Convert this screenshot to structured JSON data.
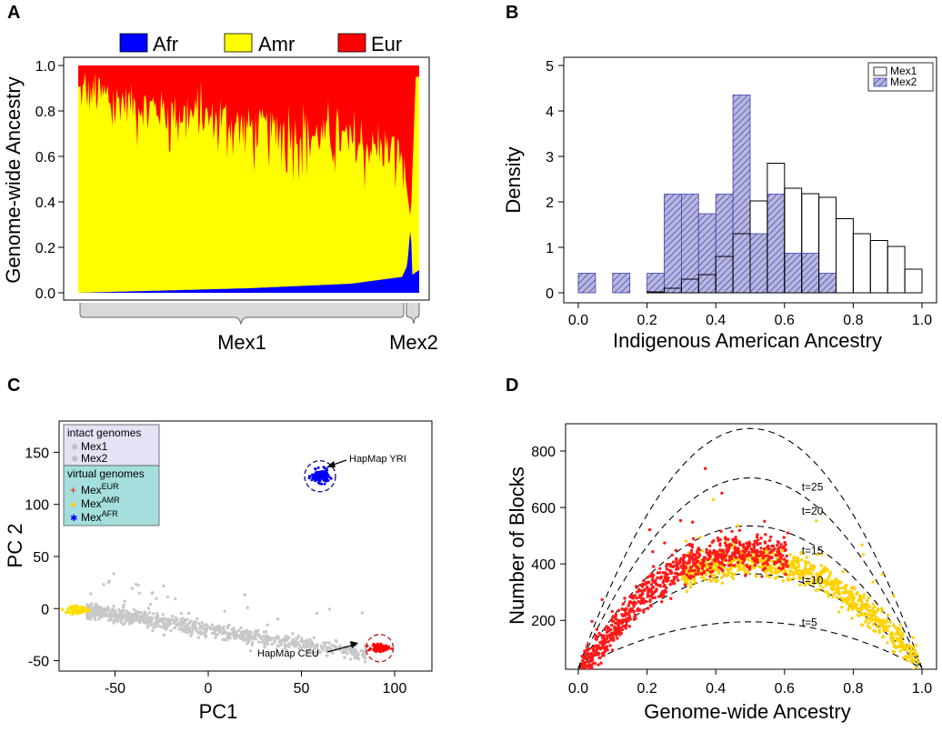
{
  "chart_data": [
    {
      "panel": "A",
      "type": "area",
      "legend": [
        {
          "name": "Afr",
          "color": "#0000ff"
        },
        {
          "name": "Amr",
          "color": "#ffff00"
        },
        {
          "name": "Eur",
          "color": "#ff0000"
        }
      ],
      "ylabel": "Genome-wide Ancestry",
      "ylim": [
        0,
        1
      ],
      "yticks": [
        "0.0",
        "0.2",
        "0.4",
        "0.6",
        "0.8",
        "1.0"
      ],
      "groups": [
        "Mex1",
        "Mex2"
      ],
      "afr_trend": [
        [
          0,
          0.0
        ],
        [
          0.5,
          0.02
        ],
        [
          0.8,
          0.04
        ],
        [
          0.95,
          0.07
        ],
        [
          0.965,
          0.12
        ],
        [
          0.975,
          0.3
        ],
        [
          0.98,
          0.08
        ],
        [
          1,
          0.1
        ]
      ],
      "amr_trend": [
        [
          0,
          0.9
        ],
        [
          0.25,
          0.82
        ],
        [
          0.5,
          0.75
        ],
        [
          0.75,
          0.7
        ],
        [
          0.95,
          0.62
        ],
        [
          0.975,
          0.32
        ],
        [
          0.99,
          0.95
        ],
        [
          1,
          0.95
        ]
      ]
    },
    {
      "panel": "B",
      "type": "bar",
      "xlabel": "Indigenous American Ancestry",
      "ylabel": "Density",
      "xlim": [
        0,
        1
      ],
      "ylim": [
        0,
        5
      ],
      "xticks": [
        "0.0",
        "0.2",
        "0.4",
        "0.6",
        "0.8",
        "1.0"
      ],
      "yticks": [
        "0",
        "1",
        "2",
        "3",
        "4",
        "5"
      ],
      "bin_width": 0.05,
      "series": [
        {
          "name": "Mex1",
          "bins": [
            0.0,
            0.05,
            0.1,
            0.15,
            0.2,
            0.25,
            0.3,
            0.35,
            0.4,
            0.45,
            0.5,
            0.55,
            0.6,
            0.65,
            0.7,
            0.75,
            0.8,
            0.85,
            0.9,
            0.95
          ],
          "values": [
            0,
            0,
            0,
            0,
            0.02,
            0.1,
            0.3,
            0.4,
            0.8,
            1.3,
            2.02,
            2.85,
            2.3,
            2.18,
            2.1,
            1.63,
            1.3,
            1.15,
            1.02,
            0.52
          ]
        },
        {
          "name": "Mex2",
          "bins": [
            0.0,
            0.05,
            0.1,
            0.15,
            0.2,
            0.25,
            0.3,
            0.35,
            0.4,
            0.45,
            0.5,
            0.55,
            0.6,
            0.65,
            0.7
          ],
          "values": [
            0.43,
            0,
            0.43,
            0,
            0.43,
            2.17,
            2.17,
            1.74,
            2.17,
            4.35,
            1.3,
            2.17,
            0.87,
            0.87,
            0.43
          ]
        }
      ]
    },
    {
      "panel": "C",
      "type": "scatter",
      "xlabel": "PC1",
      "ylabel": "PC 2",
      "xlim": [
        -80,
        120
      ],
      "ylim": [
        -60,
        180
      ],
      "xticks": [
        "-50",
        "0",
        "50",
        "100"
      ],
      "yticks": [
        "-50",
        "0",
        "50",
        "100",
        "150"
      ],
      "legend_header_intact": "intact genomes",
      "legend_intact": [
        "Mex1",
        "Mex2"
      ],
      "legend_header_virtual": "virtual genomes",
      "legend_virtual": [
        {
          "base": "Mex",
          "sup": "EUR",
          "color": "#ff0000"
        },
        {
          "base": "Mex",
          "sup": "AMR",
          "color": "#ffcc00"
        },
        {
          "base": "Mex",
          "sup": "AFR",
          "color": "#0000ff"
        }
      ],
      "clusters": [
        {
          "name": "HapMap YRI",
          "center": [
            60,
            127
          ],
          "color": "#0000ff"
        },
        {
          "name": "HapMap CEU",
          "center": [
            92,
            -38
          ],
          "color": "#ff0000"
        }
      ],
      "annotations": [
        "HapMap YRI",
        "HapMap CEU"
      ],
      "amr_cluster_center": [
        -70,
        -1
      ]
    },
    {
      "panel": "D",
      "type": "scatter",
      "xlabel": "Genome-wide Ancestry",
      "ylabel": "Number of Blocks",
      "xlim": [
        0,
        1
      ],
      "ylim": [
        30,
        900
      ],
      "xticks": [
        "0.0",
        "0.2",
        "0.4",
        "0.6",
        "0.8",
        "1.0"
      ],
      "yticks": [
        "200",
        "400",
        "600",
        "800"
      ],
      "curve_labels": [
        "t=5",
        "t=10",
        "t=15",
        "t=20",
        "t=25"
      ],
      "curve_peaks": [
        195,
        365,
        535,
        705,
        880
      ],
      "eur_points_peak": 450,
      "amr_points_peak": 410
    }
  ],
  "panels": [
    "A",
    "B",
    "C",
    "D"
  ]
}
